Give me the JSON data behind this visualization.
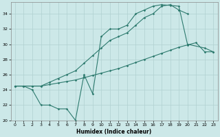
{
  "xlabel": "Humidex (Indice chaleur)",
  "bg_color": "#cce8e8",
  "grid_color": "#b0d0d0",
  "line_color": "#2d7a6e",
  "xlim": [
    -0.5,
    23.5
  ],
  "ylim": [
    20,
    35.5
  ],
  "xticks": [
    0,
    1,
    2,
    3,
    4,
    5,
    6,
    7,
    8,
    9,
    10,
    11,
    12,
    13,
    14,
    15,
    16,
    17,
    18,
    19,
    20,
    21,
    22,
    23
  ],
  "yticks": [
    20,
    22,
    24,
    26,
    28,
    30,
    32,
    34
  ],
  "line1_x": [
    0,
    1,
    2,
    3,
    4,
    5,
    6,
    7,
    8,
    9,
    10,
    11,
    12,
    13,
    14,
    15,
    16,
    17,
    18,
    19,
    20,
    22,
    23
  ],
  "line1_y": [
    24.5,
    24.5,
    24.0,
    22.0,
    22.0,
    21.5,
    21.5,
    20.0,
    26.0,
    23.5,
    31.0,
    32.0,
    32.0,
    32.5,
    34.0,
    34.5,
    35.0,
    35.2,
    35.1,
    35.0,
    30.0,
    29.5,
    29.0
  ],
  "line2_x": [
    0,
    1,
    2,
    3,
    4,
    5,
    6,
    7,
    8,
    9,
    10,
    11,
    12,
    13,
    14,
    15,
    16,
    17,
    18,
    19,
    20,
    21,
    22,
    23
  ],
  "line2_y": [
    24.5,
    24.5,
    24.5,
    24.5,
    24.7,
    24.9,
    25.1,
    25.3,
    25.6,
    25.9,
    26.2,
    26.5,
    26.8,
    27.2,
    27.6,
    28.0,
    28.4,
    28.8,
    29.2,
    29.6,
    29.9,
    30.2,
    29.0,
    29.0
  ],
  "line3_x": [
    0,
    1,
    2,
    3,
    4,
    5,
    6,
    7,
    8,
    9,
    10,
    11,
    12,
    13,
    14,
    15,
    16,
    17,
    18,
    19,
    20
  ],
  "line3_y": [
    24.5,
    24.5,
    24.5,
    24.5,
    25.0,
    25.5,
    26.0,
    26.5,
    27.5,
    28.5,
    29.5,
    30.5,
    31.0,
    31.5,
    32.5,
    33.5,
    34.0,
    35.0,
    35.2,
    34.5,
    34.0
  ]
}
